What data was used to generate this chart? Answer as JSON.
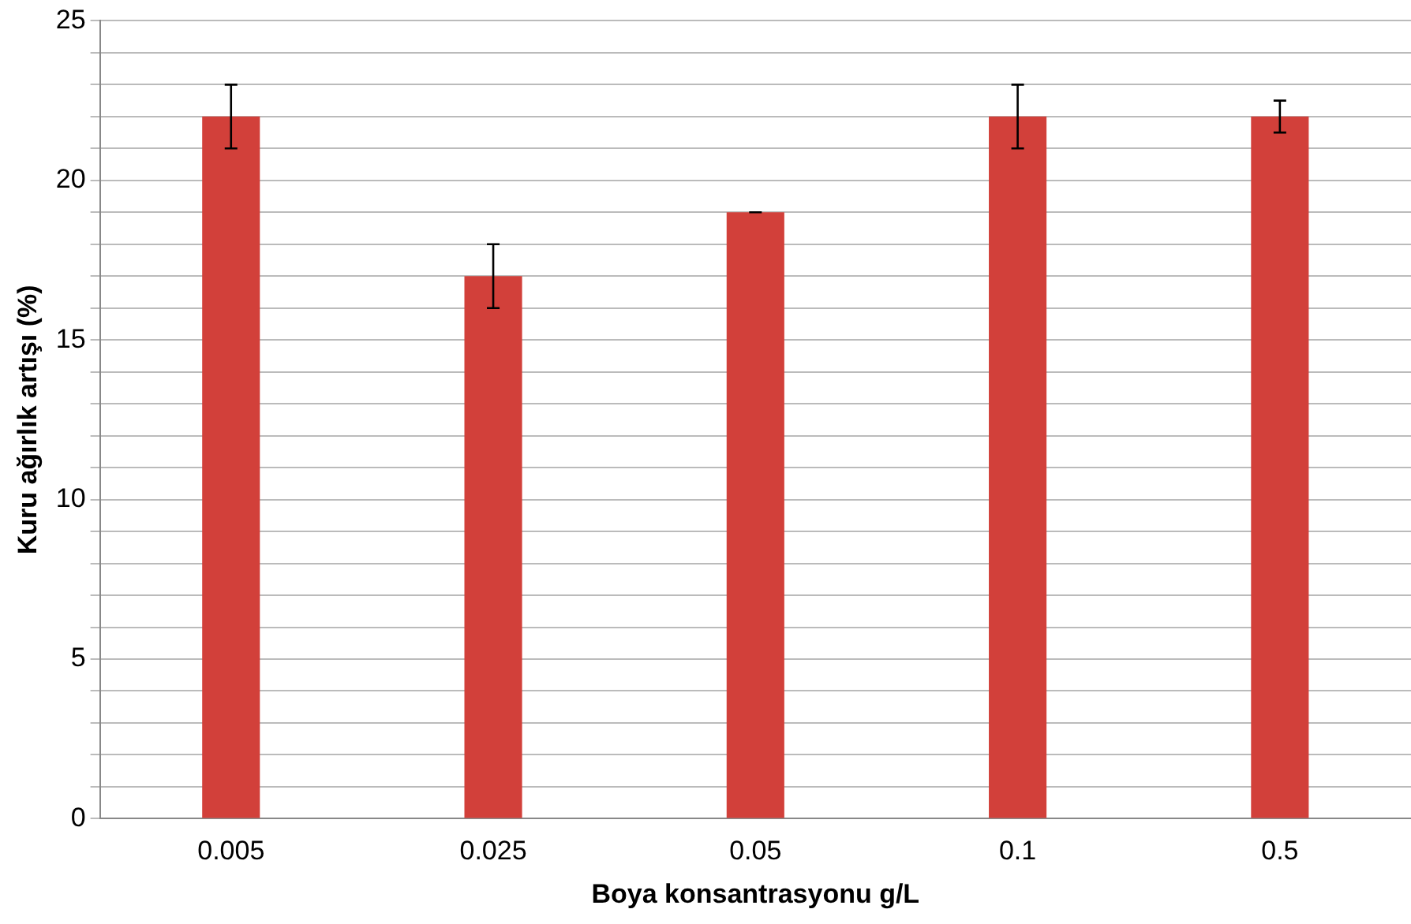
{
  "chart_data": {
    "type": "bar",
    "xlabel": "Boya konsantrasyonu g/L",
    "ylabel": "Kuru ağırlık artışı (%)",
    "categories": [
      "0.005",
      "0.025",
      "0.05",
      "0.1",
      "0.5"
    ],
    "series": [
      {
        "color": "#d2403a",
        "values": [
          22,
          17,
          19,
          22,
          22
        ],
        "errors": [
          1,
          1,
          0,
          1,
          0.5
        ]
      }
    ],
    "ylim": [
      0,
      25
    ],
    "yticks": [
      0,
      {
        "value": 1,
        "label": null
      },
      {
        "value": 2,
        "label": null
      },
      {
        "value": 3,
        "label": null
      },
      {
        "value": 4,
        "label": null
      },
      5,
      {
        "value": 6,
        "label": null
      },
      {
        "value": 7,
        "label": null
      },
      {
        "value": 8,
        "label": null
      },
      {
        "value": 9,
        "label": null
      },
      10,
      {
        "value": 11,
        "label": null
      },
      {
        "value": 12,
        "label": null
      },
      {
        "value": 13,
        "label": null
      },
      {
        "value": 14,
        "label": null
      },
      15,
      {
        "value": 16,
        "label": null
      },
      {
        "value": 17,
        "label": null
      },
      {
        "value": 18,
        "label": null
      },
      {
        "value": 19,
        "label": null
      },
      20,
      {
        "value": 21,
        "label": null
      },
      {
        "value": 22,
        "label": null
      },
      {
        "value": 23,
        "label": null
      },
      {
        "value": 24,
        "label": null
      },
      25
    ],
    "grid": "y",
    "legend": false
  }
}
